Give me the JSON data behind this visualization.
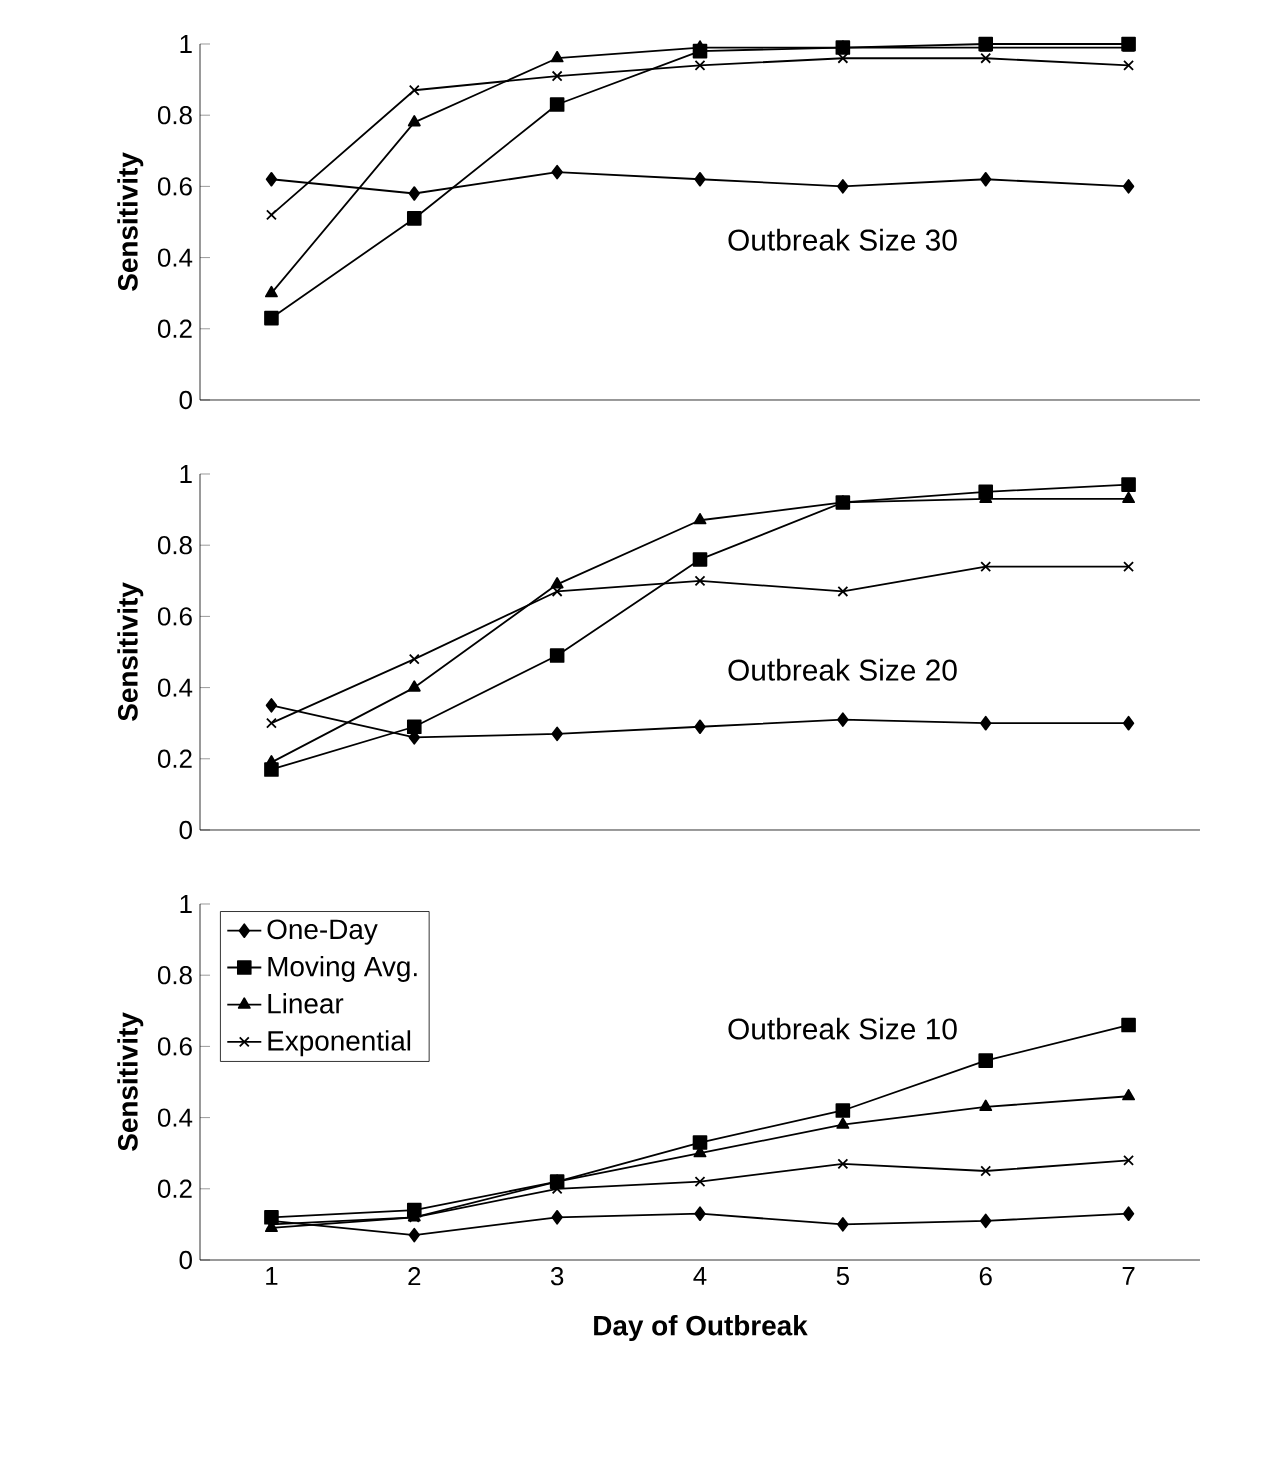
{
  "chart_data": [
    {
      "type": "line",
      "ylabel": "Sensitivity",
      "annotations": [
        "Outbreak Size 30"
      ],
      "categories": [
        "1",
        "2",
        "3",
        "4",
        "5",
        "6",
        "7"
      ],
      "ylim": [
        0,
        1
      ],
      "yticks": [
        0,
        0.2,
        0.4,
        0.6,
        0.8,
        1
      ],
      "tick_labels": "y",
      "grid": false,
      "line_style": "solid",
      "series": [
        {
          "color": "#000000",
          "marker": "diamond",
          "values": [
            0.62,
            0.58,
            0.64,
            0.62,
            0.6,
            0.62,
            0.6
          ]
        },
        {
          "color": "#000000",
          "marker": "square",
          "values": [
            0.23,
            0.51,
            0.83,
            0.98,
            0.99,
            1.0,
            1.0
          ]
        },
        {
          "color": "#000000",
          "marker": "triangle",
          "values": [
            0.3,
            0.78,
            0.96,
            0.99,
            0.99,
            0.99,
            0.99
          ]
        },
        {
          "color": "#000000",
          "marker": "cross",
          "values": [
            0.52,
            0.87,
            0.91,
            0.94,
            0.96,
            0.96,
            0.94
          ]
        }
      ]
    },
    {
      "type": "line",
      "ylabel": "Sensitivity",
      "annotations": [
        "Outbreak Size 20"
      ],
      "categories": [
        "1",
        "2",
        "3",
        "4",
        "5",
        "6",
        "7"
      ],
      "ylim": [
        0,
        1
      ],
      "yticks": [
        0,
        0.2,
        0.4,
        0.6,
        0.8,
        1
      ],
      "tick_labels": "y",
      "grid": false,
      "line_style": "solid",
      "series": [
        {
          "color": "#000000",
          "marker": "diamond",
          "values": [
            0.35,
            0.26,
            0.27,
            0.29,
            0.31,
            0.3,
            0.3
          ]
        },
        {
          "color": "#000000",
          "marker": "square",
          "values": [
            0.17,
            0.29,
            0.49,
            0.76,
            0.92,
            0.95,
            0.97
          ]
        },
        {
          "color": "#000000",
          "marker": "triangle",
          "values": [
            0.19,
            0.4,
            0.69,
            0.87,
            0.92,
            0.93,
            0.93
          ]
        },
        {
          "color": "#000000",
          "marker": "cross",
          "values": [
            0.3,
            0.48,
            0.67,
            0.7,
            0.67,
            0.74,
            0.74
          ]
        }
      ]
    },
    {
      "type": "line",
      "ylabel": "Sensitivity",
      "xlabel": "Day of Outbreak",
      "annotations": [
        "Outbreak Size 10"
      ],
      "categories": [
        "1",
        "2",
        "3",
        "4",
        "5",
        "6",
        "7"
      ],
      "ylim": [
        0,
        1
      ],
      "yticks": [
        0,
        0.2,
        0.4,
        0.6,
        0.8,
        1
      ],
      "grid": false,
      "legend": "top left",
      "line_style": "solid",
      "series": [
        {
          "name": "One-Day",
          "color": "#000000",
          "marker": "diamond",
          "values": [
            0.11,
            0.07,
            0.12,
            0.13,
            0.1,
            0.11,
            0.13
          ]
        },
        {
          "name": "Moving Avg.",
          "color": "#000000",
          "marker": "square",
          "values": [
            0.12,
            0.14,
            0.22,
            0.33,
            0.42,
            0.56,
            0.66
          ]
        },
        {
          "name": "Linear",
          "color": "#000000",
          "marker": "triangle",
          "values": [
            0.09,
            0.12,
            0.22,
            0.3,
            0.38,
            0.43,
            0.46
          ]
        },
        {
          "name": "Exponential",
          "color": "#000000",
          "marker": "cross",
          "values": [
            0.1,
            0.12,
            0.2,
            0.22,
            0.27,
            0.25,
            0.28
          ]
        }
      ]
    }
  ]
}
